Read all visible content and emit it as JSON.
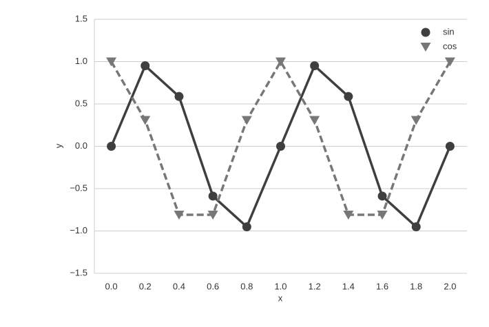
{
  "chart_data": {
    "type": "point",
    "xlabel": "x",
    "ylabel": "y",
    "categories": [
      "0.0",
      "0.2",
      "0.4",
      "0.6",
      "0.8",
      "1.0",
      "1.2",
      "1.4",
      "1.6",
      "1.8",
      "2.0"
    ],
    "series": [
      {
        "name": "sin",
        "color": "#3f3f3f",
        "marker": "circle",
        "linestyle": "solid",
        "values": [
          0,
          0.951,
          0.588,
          -0.588,
          -0.951,
          0,
          0.951,
          0.588,
          -0.588,
          -0.951,
          0
        ]
      },
      {
        "name": "cos",
        "color": "#777777",
        "marker": "triangle-down",
        "linestyle": "dashed",
        "values": [
          1,
          0.309,
          -0.809,
          -0.809,
          0.309,
          1,
          0.309,
          -0.809,
          -0.809,
          0.309,
          1
        ]
      }
    ],
    "ylim": [
      -1.5,
      1.5
    ],
    "yticks": [
      {
        "value": -1.5,
        "label": "−1.5"
      },
      {
        "value": -1,
        "label": "−1.0"
      },
      {
        "value": -0.5,
        "label": "−0.5"
      },
      {
        "value": 0,
        "label": "0.0"
      },
      0.5,
      {
        "value": 1,
        "label": "1.0"
      },
      1.5
    ],
    "grid": true,
    "legend": "upper right"
  }
}
